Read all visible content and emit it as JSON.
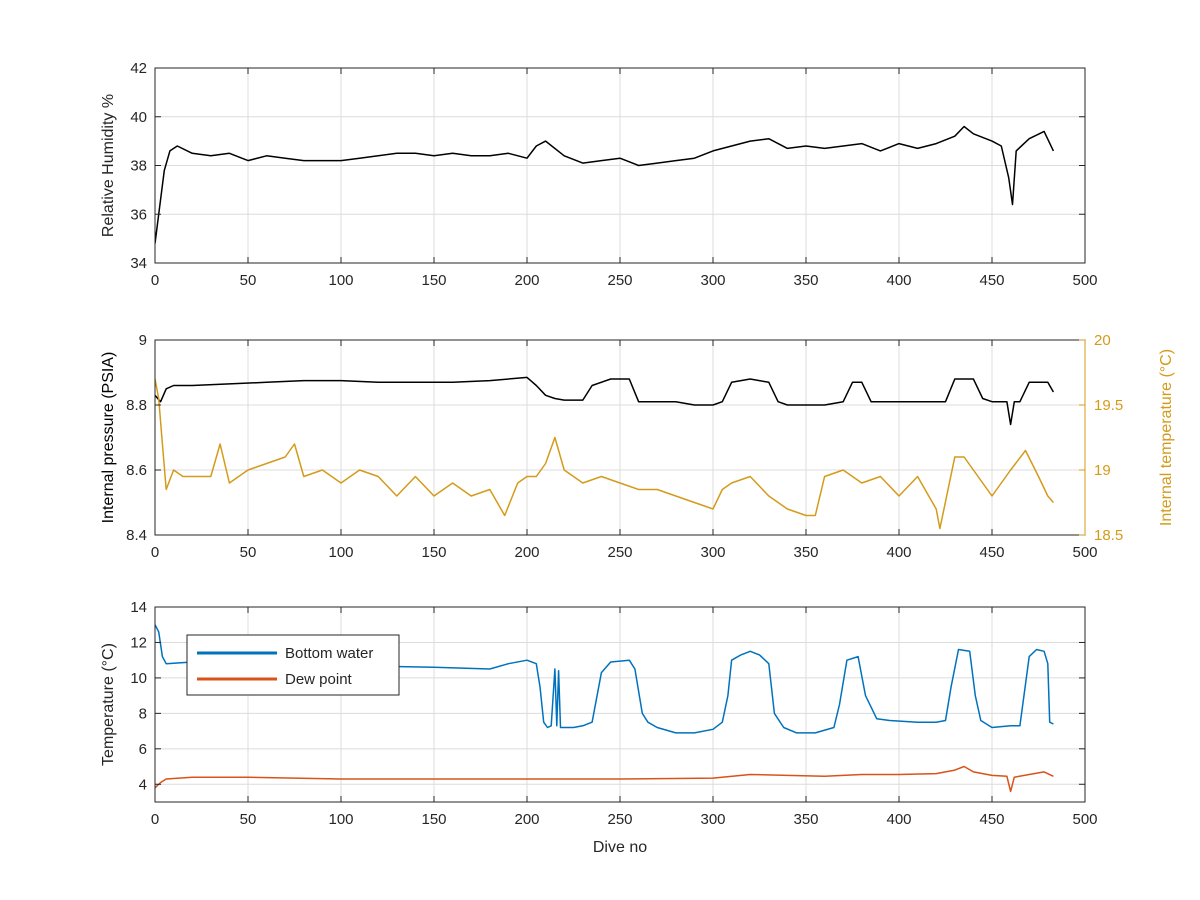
{
  "figure": {
    "background": "#ffffff"
  },
  "chart_data": [
    {
      "type": "line",
      "xlabel": "",
      "ylabel": "Relative Humidity %",
      "xlim": [
        0,
        500
      ],
      "ylim": [
        34,
        42
      ],
      "xticks": [
        0,
        50,
        100,
        150,
        200,
        250,
        300,
        350,
        400,
        450,
        500
      ],
      "yticks": [
        34,
        36,
        38,
        40,
        42
      ],
      "grid": true,
      "series": [
        {
          "color": "#000000",
          "x": [
            0,
            2,
            5,
            8,
            12,
            20,
            30,
            40,
            50,
            60,
            70,
            80,
            90,
            100,
            110,
            120,
            130,
            140,
            150,
            160,
            170,
            180,
            190,
            200,
            205,
            210,
            220,
            230,
            240,
            250,
            260,
            270,
            280,
            290,
            300,
            310,
            320,
            330,
            340,
            350,
            360,
            370,
            380,
            390,
            400,
            410,
            420,
            430,
            435,
            440,
            450,
            455,
            459,
            461,
            463,
            470,
            478,
            483
          ],
          "y": [
            34.8,
            36.0,
            37.8,
            38.6,
            38.8,
            38.5,
            38.4,
            38.5,
            38.2,
            38.4,
            38.3,
            38.2,
            38.2,
            38.2,
            38.3,
            38.4,
            38.5,
            38.5,
            38.4,
            38.5,
            38.4,
            38.4,
            38.5,
            38.3,
            38.8,
            39.0,
            38.4,
            38.1,
            38.2,
            38.3,
            38.0,
            38.1,
            38.2,
            38.3,
            38.6,
            38.8,
            39.0,
            39.1,
            38.7,
            38.8,
            38.7,
            38.8,
            38.9,
            38.6,
            38.9,
            38.7,
            38.9,
            39.2,
            39.6,
            39.3,
            39.0,
            38.8,
            37.5,
            36.4,
            38.6,
            39.1,
            39.4,
            38.6
          ]
        }
      ]
    },
    {
      "type": "line",
      "xlabel": "",
      "ylabel": "Internal pressure (PSIA)",
      "ylabel_right": "Internal temperature (°C)",
      "xlim": [
        0,
        500
      ],
      "ylim": [
        8.4,
        9
      ],
      "ylim_right": [
        18.5,
        20
      ],
      "xticks": [
        0,
        50,
        100,
        150,
        200,
        250,
        300,
        350,
        400,
        450,
        500
      ],
      "yticks": [
        8.4,
        8.6,
        8.8,
        9
      ],
      "yticks_right": [
        18.5,
        19,
        19.5,
        20
      ],
      "yticks_right_labels": [
        "18.5",
        "19",
        "19.5",
        "20"
      ],
      "grid": true,
      "series": [
        {
          "axis": "left",
          "color": "#000000",
          "x": [
            0,
            3,
            6,
            10,
            20,
            40,
            60,
            80,
            100,
            120,
            140,
            160,
            180,
            200,
            205,
            210,
            215,
            220,
            230,
            235,
            245,
            255,
            260,
            270,
            280,
            290,
            300,
            305,
            310,
            320,
            330,
            335,
            340,
            350,
            360,
            370,
            375,
            380,
            385,
            395,
            410,
            425,
            430,
            440,
            445,
            450,
            458,
            460,
            462,
            465,
            470,
            480,
            483
          ],
          "y": [
            8.83,
            8.81,
            8.85,
            8.86,
            8.86,
            8.865,
            8.87,
            8.875,
            8.875,
            8.87,
            8.87,
            8.87,
            8.875,
            8.885,
            8.86,
            8.83,
            8.82,
            8.815,
            8.815,
            8.86,
            8.88,
            8.88,
            8.81,
            8.81,
            8.81,
            8.8,
            8.8,
            8.81,
            8.87,
            8.88,
            8.87,
            8.81,
            8.8,
            8.8,
            8.8,
            8.81,
            8.87,
            8.87,
            8.81,
            8.81,
            8.81,
            8.81,
            8.88,
            8.88,
            8.82,
            8.81,
            8.81,
            8.74,
            8.81,
            8.81,
            8.87,
            8.87,
            8.84
          ]
        },
        {
          "axis": "right",
          "color": "#d49b1b",
          "x": [
            0,
            2,
            4,
            6,
            10,
            15,
            20,
            30,
            35,
            40,
            50,
            60,
            70,
            75,
            80,
            90,
            100,
            110,
            120,
            130,
            140,
            150,
            160,
            170,
            180,
            188,
            195,
            200,
            205,
            210,
            215,
            220,
            230,
            240,
            250,
            260,
            270,
            280,
            290,
            300,
            305,
            310,
            320,
            330,
            340,
            350,
            355,
            360,
            370,
            380,
            390,
            400,
            410,
            420,
            422,
            430,
            435,
            440,
            450,
            460,
            468,
            475,
            480,
            483
          ],
          "y": [
            19.7,
            19.55,
            19.2,
            18.85,
            19.0,
            18.95,
            18.95,
            18.95,
            19.2,
            18.9,
            19.0,
            19.05,
            19.1,
            19.2,
            18.95,
            19.0,
            18.9,
            19.0,
            18.95,
            18.8,
            18.95,
            18.8,
            18.9,
            18.8,
            18.85,
            18.65,
            18.9,
            18.95,
            18.95,
            19.05,
            19.25,
            19.0,
            18.9,
            18.95,
            18.9,
            18.85,
            18.85,
            18.8,
            18.75,
            18.7,
            18.85,
            18.9,
            18.95,
            18.8,
            18.7,
            18.65,
            18.65,
            18.95,
            19.0,
            18.9,
            18.95,
            18.8,
            18.95,
            18.7,
            18.55,
            19.1,
            19.1,
            19.0,
            18.8,
            19.0,
            19.15,
            18.95,
            18.8,
            18.75
          ]
        }
      ]
    },
    {
      "type": "line",
      "xlabel": "Dive no",
      "ylabel": "Temperature (°C)",
      "xlim": [
        0,
        500
      ],
      "ylim": [
        3,
        14
      ],
      "xticks": [
        0,
        50,
        100,
        150,
        200,
        250,
        300,
        350,
        400,
        450,
        500
      ],
      "yticks": [
        4,
        6,
        8,
        10,
        12,
        14
      ],
      "grid": true,
      "legend": "top-left",
      "series": [
        {
          "name": "Bottom water",
          "color": "#0072bd",
          "x": [
            0,
            2,
            4,
            6,
            20,
            40,
            60,
            100,
            150,
            180,
            190,
            200,
            205,
            207,
            209,
            211,
            213,
            215,
            216,
            217,
            218,
            225,
            230,
            235,
            240,
            245,
            255,
            258,
            262,
            265,
            270,
            280,
            290,
            300,
            305,
            308,
            310,
            315,
            320,
            325,
            330,
            333,
            338,
            345,
            355,
            365,
            368,
            372,
            378,
            382,
            388,
            395,
            410,
            420,
            425,
            428,
            432,
            438,
            441,
            444,
            450,
            460,
            465,
            470,
            474,
            478,
            480,
            481,
            483
          ],
          "y": [
            13.0,
            12.6,
            11.2,
            10.8,
            10.9,
            10.8,
            10.8,
            10.7,
            10.6,
            10.5,
            10.8,
            11.0,
            10.8,
            9.5,
            7.5,
            7.2,
            7.3,
            10.5,
            7.3,
            10.4,
            7.2,
            7.2,
            7.3,
            7.5,
            10.3,
            10.9,
            11.0,
            10.5,
            8.0,
            7.5,
            7.2,
            6.9,
            6.9,
            7.1,
            7.5,
            9.0,
            11.0,
            11.3,
            11.5,
            11.3,
            10.8,
            8.0,
            7.2,
            6.9,
            6.9,
            7.2,
            8.5,
            11.0,
            11.2,
            9.0,
            7.7,
            7.6,
            7.5,
            7.5,
            7.6,
            9.5,
            11.6,
            11.5,
            9.0,
            7.6,
            7.2,
            7.3,
            7.3,
            11.2,
            11.6,
            11.5,
            10.8,
            7.5,
            7.4
          ]
        },
        {
          "name": "Dew point",
          "color": "#d95319",
          "x": [
            0,
            3,
            6,
            20,
            50,
            100,
            150,
            200,
            250,
            300,
            320,
            340,
            360,
            380,
            400,
            420,
            430,
            435,
            440,
            450,
            458,
            460,
            462,
            470,
            478,
            483
          ],
          "y": [
            3.8,
            4.1,
            4.3,
            4.4,
            4.4,
            4.3,
            4.3,
            4.3,
            4.3,
            4.35,
            4.55,
            4.5,
            4.45,
            4.55,
            4.55,
            4.6,
            4.8,
            5.0,
            4.7,
            4.5,
            4.45,
            3.6,
            4.4,
            4.55,
            4.7,
            4.45
          ]
        }
      ]
    }
  ]
}
